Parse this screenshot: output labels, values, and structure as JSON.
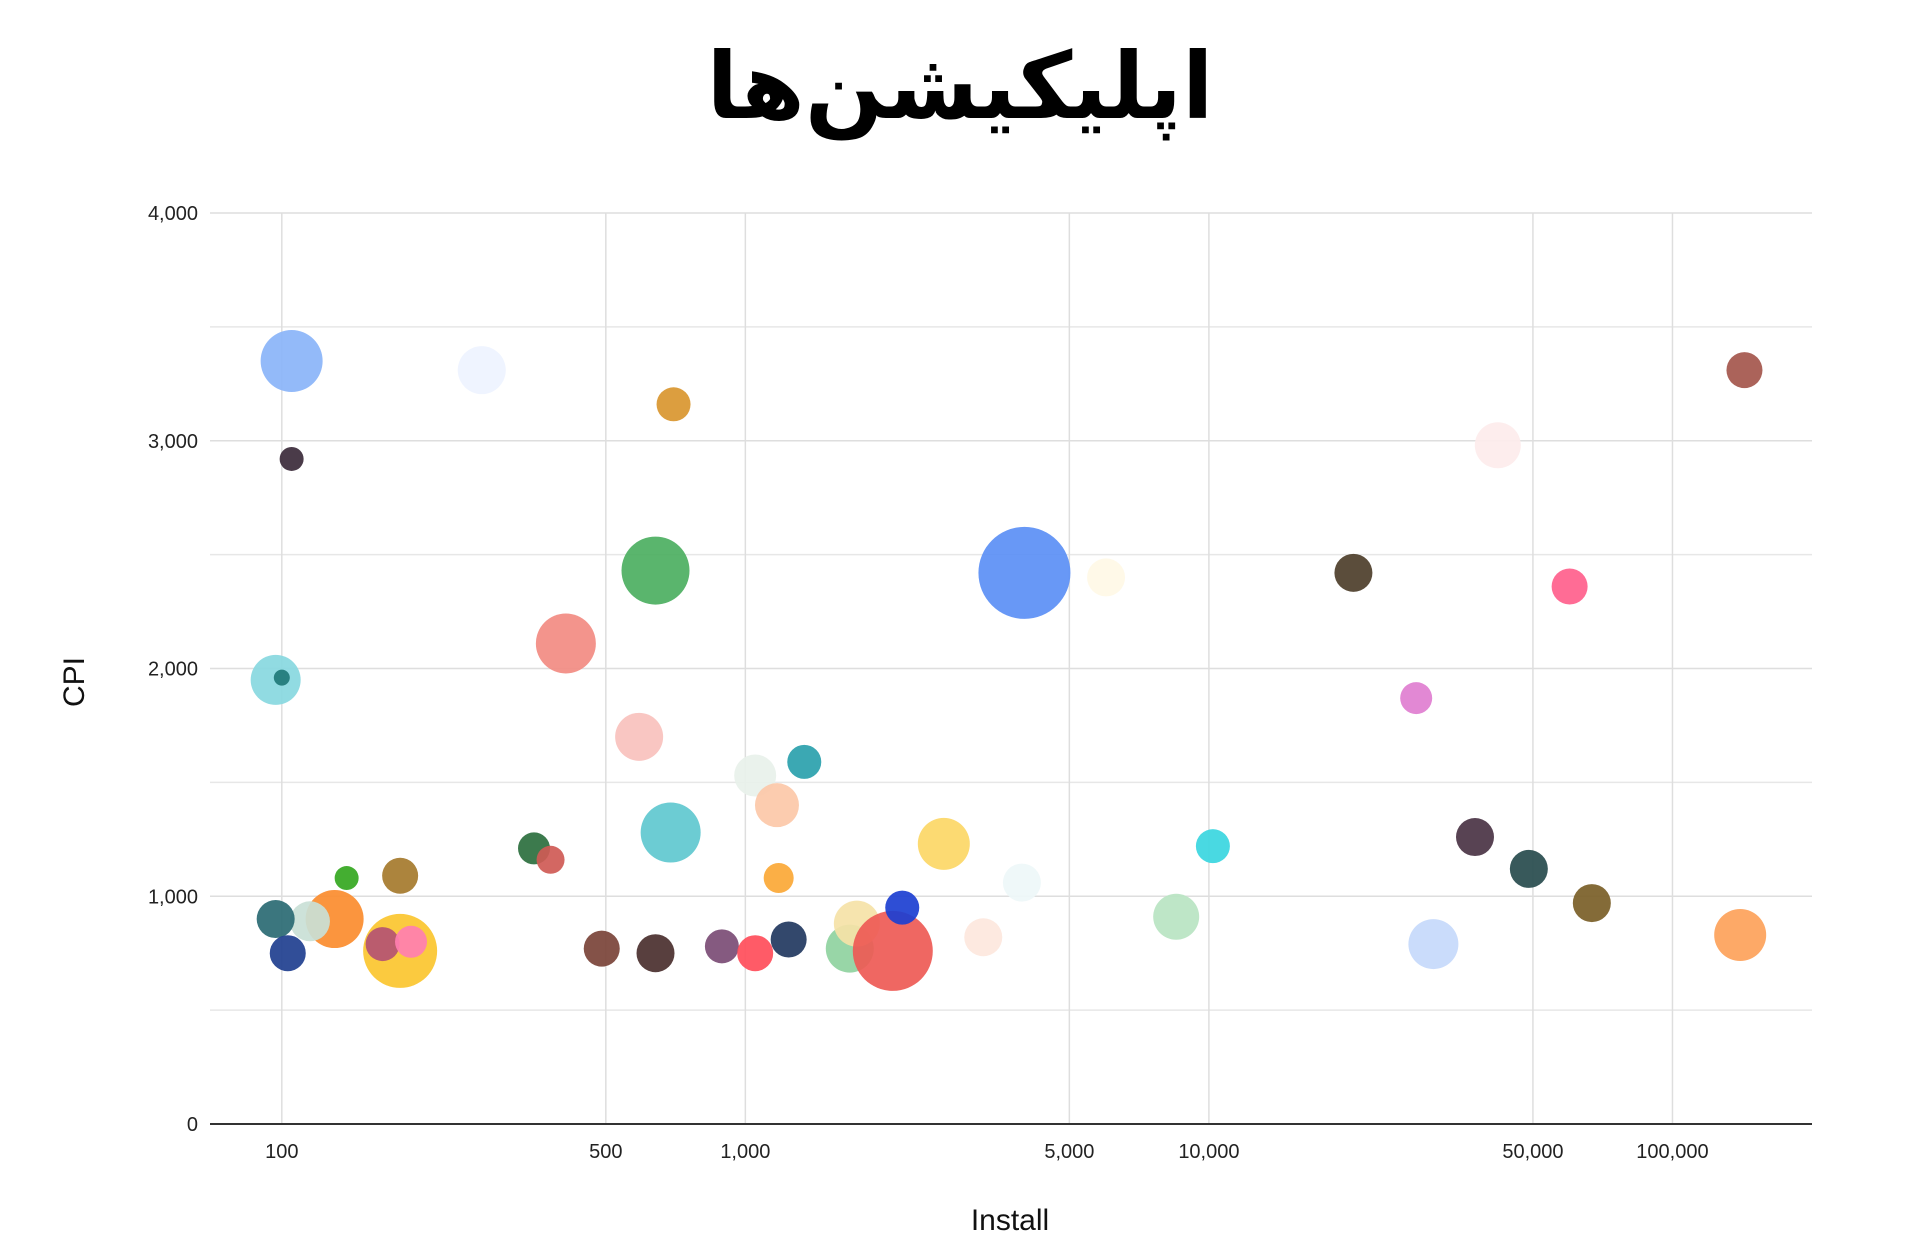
{
  "chart_data": {
    "type": "scatter",
    "variant": "bubble",
    "title": "اپلیکیشن‌ها",
    "xlabel": "Install",
    "ylabel": "CPI",
    "x_scale": "log",
    "xlim": [
      70,
      200000
    ],
    "ylim": [
      0,
      4000
    ],
    "x_ticks": [
      {
        "value": 100,
        "label": "100"
      },
      {
        "value": 500,
        "label": "500"
      },
      {
        "value": 1000,
        "label": "1,000"
      },
      {
        "value": 5000,
        "label": "5,000"
      },
      {
        "value": 10000,
        "label": "10,000"
      },
      {
        "value": 50000,
        "label": "50,000"
      },
      {
        "value": 100000,
        "label": "100,000"
      }
    ],
    "y_ticks": [
      {
        "value": 0,
        "label": "0"
      },
      {
        "value": 1000,
        "label": "1,000"
      },
      {
        "value": 2000,
        "label": "2,000"
      },
      {
        "value": 3000,
        "label": "3,000"
      },
      {
        "value": 4000,
        "label": "4,000"
      }
    ],
    "y_minor_gridlines": [
      500,
      1500,
      2500,
      3500
    ],
    "grid": true,
    "legend": "none",
    "points": [
      {
        "x": 105,
        "y": 3350,
        "size": 31,
        "color": "#8ab4f8"
      },
      {
        "x": 105,
        "y": 2920,
        "size": 12,
        "color": "#3b2a3a"
      },
      {
        "x": 270,
        "y": 3310,
        "size": 24,
        "color": "#eef3ff"
      },
      {
        "x": 700,
        "y": 3160,
        "size": 17,
        "color": "#d9962f"
      },
      {
        "x": 97,
        "y": 1950,
        "size": 25,
        "color": "#88d8df"
      },
      {
        "x": 100,
        "y": 1960,
        "size": 8,
        "color": "#1f7a78"
      },
      {
        "x": 640,
        "y": 2430,
        "size": 34,
        "color": "#4caf61"
      },
      {
        "x": 410,
        "y": 2110,
        "size": 30,
        "color": "#f28b82"
      },
      {
        "x": 590,
        "y": 1700,
        "size": 24,
        "color": "#f8c1bd"
      },
      {
        "x": 690,
        "y": 1280,
        "size": 30,
        "color": "#5fc8cf"
      },
      {
        "x": 350,
        "y": 1210,
        "size": 16,
        "color": "#2b6f3e"
      },
      {
        "x": 380,
        "y": 1160,
        "size": 14,
        "color": "#cf5a55"
      },
      {
        "x": 138,
        "y": 1080,
        "size": 12,
        "color": "#34a71f"
      },
      {
        "x": 180,
        "y": 1090,
        "size": 18,
        "color": "#a57a2c"
      },
      {
        "x": 130,
        "y": 900,
        "size": 29,
        "color": "#fb8c2e"
      },
      {
        "x": 115,
        "y": 890,
        "size": 20,
        "color": "#c9dfd6"
      },
      {
        "x": 97,
        "y": 900,
        "size": 19,
        "color": "#2a6a73"
      },
      {
        "x": 103,
        "y": 750,
        "size": 18,
        "color": "#1f3f8f"
      },
      {
        "x": 180,
        "y": 760,
        "size": 37,
        "color": "#fbc52f"
      },
      {
        "x": 165,
        "y": 790,
        "size": 17,
        "color": "#b45372"
      },
      {
        "x": 190,
        "y": 800,
        "size": 16,
        "color": "#ff7fb0"
      },
      {
        "x": 490,
        "y": 770,
        "size": 18,
        "color": "#7a4338"
      },
      {
        "x": 640,
        "y": 750,
        "size": 19,
        "color": "#4a2f2e"
      },
      {
        "x": 890,
        "y": 780,
        "size": 17,
        "color": "#7b4c75"
      },
      {
        "x": 1050,
        "y": 750,
        "size": 18,
        "color": "#ff4d5a"
      },
      {
        "x": 1240,
        "y": 810,
        "size": 18,
        "color": "#22385f"
      },
      {
        "x": 1050,
        "y": 1530,
        "size": 21,
        "color": "#e8f1ea"
      },
      {
        "x": 1170,
        "y": 1400,
        "size": 22,
        "color": "#fcc8a8"
      },
      {
        "x": 1340,
        "y": 1590,
        "size": 17,
        "color": "#2aa1ad"
      },
      {
        "x": 1180,
        "y": 1080,
        "size": 15,
        "color": "#fba836"
      },
      {
        "x": 1680,
        "y": 770,
        "size": 24,
        "color": "#8fd39f"
      },
      {
        "x": 1740,
        "y": 880,
        "size": 23,
        "color": "#f5e2a7"
      },
      {
        "x": 2080,
        "y": 760,
        "size": 40,
        "color": "#ee5a55"
      },
      {
        "x": 2180,
        "y": 950,
        "size": 17,
        "color": "#1c3fd1"
      },
      {
        "x": 2680,
        "y": 1230,
        "size": 26,
        "color": "#fcd766"
      },
      {
        "x": 3260,
        "y": 820,
        "size": 19,
        "color": "#fde7dd"
      },
      {
        "x": 3950,
        "y": 1060,
        "size": 19,
        "color": "#eef7f8"
      },
      {
        "x": 4000,
        "y": 2420,
        "size": 46,
        "color": "#5b8ff5"
      },
      {
        "x": 6000,
        "y": 2400,
        "size": 19,
        "color": "#fff8e6"
      },
      {
        "x": 8500,
        "y": 910,
        "size": 23,
        "color": "#b8e4c2"
      },
      {
        "x": 10200,
        "y": 1220,
        "size": 17,
        "color": "#3ad6e0"
      },
      {
        "x": 20500,
        "y": 2420,
        "size": 19,
        "color": "#4d3e2a"
      },
      {
        "x": 28000,
        "y": 1870,
        "size": 16,
        "color": "#e07ed0"
      },
      {
        "x": 30500,
        "y": 790,
        "size": 25,
        "color": "#c6d9fb"
      },
      {
        "x": 37500,
        "y": 1260,
        "size": 19,
        "color": "#4a3344"
      },
      {
        "x": 42000,
        "y": 2980,
        "size": 23,
        "color": "#fdeceb"
      },
      {
        "x": 49000,
        "y": 1120,
        "size": 19,
        "color": "#274b4d"
      },
      {
        "x": 60000,
        "y": 2360,
        "size": 18,
        "color": "#ff5f8c"
      },
      {
        "x": 67000,
        "y": 970,
        "size": 19,
        "color": "#7a5e27"
      },
      {
        "x": 140000,
        "y": 830,
        "size": 26,
        "color": "#fda25a"
      },
      {
        "x": 143000,
        "y": 3310,
        "size": 18,
        "color": "#a4564c"
      }
    ]
  }
}
